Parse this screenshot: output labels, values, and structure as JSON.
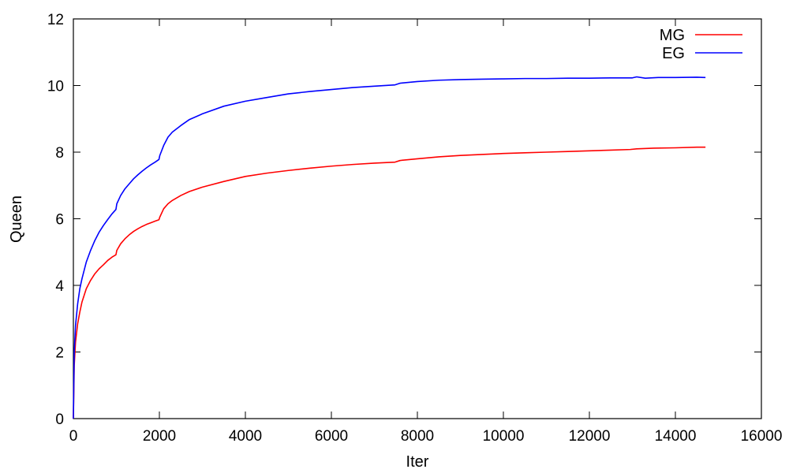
{
  "chart_data": {
    "type": "line",
    "xlabel": "Iter",
    "ylabel": "Queen",
    "xlim": [
      0,
      16000
    ],
    "ylim": [
      0,
      12
    ],
    "xticks": [
      0,
      2000,
      4000,
      6000,
      8000,
      10000,
      12000,
      14000,
      16000
    ],
    "yticks": [
      0,
      2,
      4,
      6,
      8,
      10,
      12
    ],
    "grid": false,
    "legend": "top-right",
    "series": [
      {
        "name": "MG",
        "color": "#ff0000",
        "points": [
          [
            0,
            0
          ],
          [
            20,
            1.6
          ],
          [
            50,
            2.3
          ],
          [
            100,
            2.85
          ],
          [
            150,
            3.2
          ],
          [
            200,
            3.5
          ],
          [
            300,
            3.9
          ],
          [
            400,
            4.15
          ],
          [
            500,
            4.35
          ],
          [
            600,
            4.5
          ],
          [
            700,
            4.62
          ],
          [
            800,
            4.75
          ],
          [
            900,
            4.85
          ],
          [
            990,
            4.92
          ],
          [
            1010,
            5.05
          ],
          [
            1100,
            5.25
          ],
          [
            1200,
            5.4
          ],
          [
            1300,
            5.52
          ],
          [
            1400,
            5.62
          ],
          [
            1500,
            5.7
          ],
          [
            1600,
            5.77
          ],
          [
            1700,
            5.83
          ],
          [
            1800,
            5.88
          ],
          [
            1900,
            5.93
          ],
          [
            1990,
            5.97
          ],
          [
            2010,
            6.05
          ],
          [
            2100,
            6.3
          ],
          [
            2200,
            6.45
          ],
          [
            2300,
            6.55
          ],
          [
            2500,
            6.7
          ],
          [
            2700,
            6.82
          ],
          [
            3000,
            6.95
          ],
          [
            3500,
            7.12
          ],
          [
            4000,
            7.27
          ],
          [
            4500,
            7.37
          ],
          [
            5000,
            7.45
          ],
          [
            5500,
            7.52
          ],
          [
            6000,
            7.58
          ],
          [
            6500,
            7.63
          ],
          [
            7000,
            7.67
          ],
          [
            7480,
            7.7
          ],
          [
            7600,
            7.75
          ],
          [
            8000,
            7.8
          ],
          [
            8500,
            7.86
          ],
          [
            9000,
            7.9
          ],
          [
            9500,
            7.93
          ],
          [
            10000,
            7.96
          ],
          [
            10500,
            7.98
          ],
          [
            11000,
            8.0
          ],
          [
            11500,
            8.02
          ],
          [
            12000,
            8.04
          ],
          [
            12500,
            8.06
          ],
          [
            12950,
            8.08
          ],
          [
            13100,
            8.1
          ],
          [
            13500,
            8.12
          ],
          [
            14000,
            8.13
          ],
          [
            14500,
            8.15
          ],
          [
            14700,
            8.15
          ]
        ]
      },
      {
        "name": "EG",
        "color": "#0000ff",
        "points": [
          [
            0,
            0
          ],
          [
            20,
            2.0
          ],
          [
            50,
            2.8
          ],
          [
            100,
            3.45
          ],
          [
            150,
            3.9
          ],
          [
            200,
            4.2
          ],
          [
            300,
            4.7
          ],
          [
            400,
            5.05
          ],
          [
            500,
            5.35
          ],
          [
            600,
            5.6
          ],
          [
            700,
            5.8
          ],
          [
            800,
            5.98
          ],
          [
            900,
            6.15
          ],
          [
            990,
            6.28
          ],
          [
            1010,
            6.45
          ],
          [
            1100,
            6.7
          ],
          [
            1200,
            6.9
          ],
          [
            1300,
            7.05
          ],
          [
            1400,
            7.2
          ],
          [
            1500,
            7.32
          ],
          [
            1600,
            7.43
          ],
          [
            1700,
            7.53
          ],
          [
            1800,
            7.62
          ],
          [
            1900,
            7.7
          ],
          [
            1990,
            7.78
          ],
          [
            2010,
            7.9
          ],
          [
            2100,
            8.2
          ],
          [
            2200,
            8.45
          ],
          [
            2300,
            8.6
          ],
          [
            2500,
            8.8
          ],
          [
            2700,
            8.98
          ],
          [
            3000,
            9.15
          ],
          [
            3500,
            9.38
          ],
          [
            4000,
            9.53
          ],
          [
            4500,
            9.64
          ],
          [
            5000,
            9.75
          ],
          [
            5500,
            9.82
          ],
          [
            6000,
            9.88
          ],
          [
            6500,
            9.94
          ],
          [
            7000,
            9.98
          ],
          [
            7480,
            10.02
          ],
          [
            7600,
            10.07
          ],
          [
            8000,
            10.12
          ],
          [
            8500,
            10.16
          ],
          [
            9000,
            10.18
          ],
          [
            9500,
            10.19
          ],
          [
            10000,
            10.2
          ],
          [
            10500,
            10.21
          ],
          [
            11000,
            10.21
          ],
          [
            11500,
            10.22
          ],
          [
            12000,
            10.22
          ],
          [
            12500,
            10.23
          ],
          [
            13000,
            10.23
          ],
          [
            13100,
            10.26
          ],
          [
            13300,
            10.22
          ],
          [
            13600,
            10.24
          ],
          [
            14000,
            10.24
          ],
          [
            14500,
            10.25
          ],
          [
            14700,
            10.24
          ]
        ]
      }
    ]
  }
}
